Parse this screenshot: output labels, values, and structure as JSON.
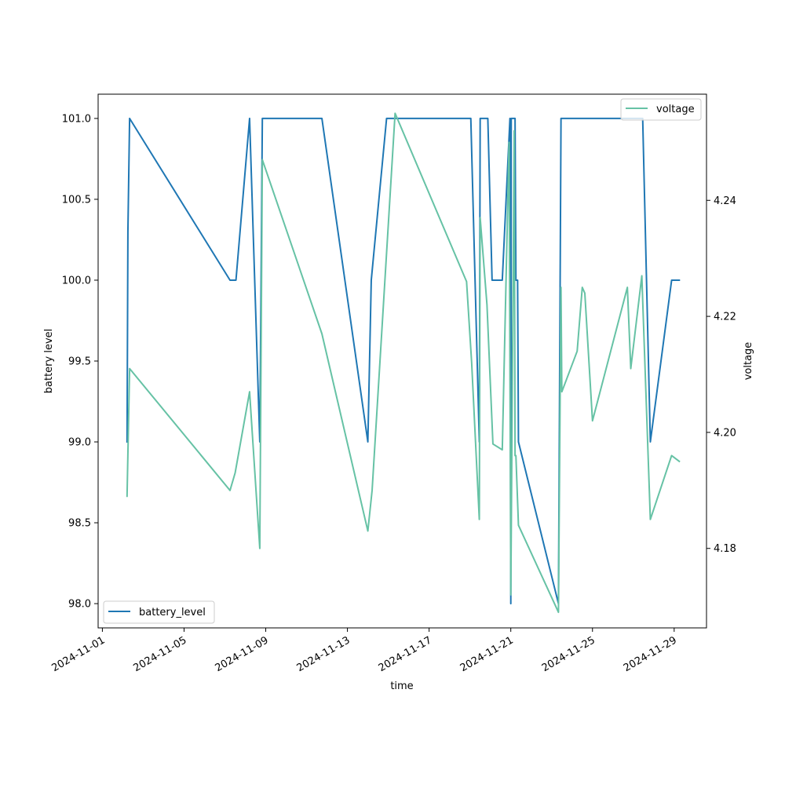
{
  "chart_data": {
    "type": "line",
    "title": "",
    "xlabel": "time",
    "ylabel_left": "battery level",
    "ylabel_right": "voltage",
    "xlim": [
      "2024-10-31T19:00",
      "2024-11-30T14:00"
    ],
    "ylim_left": [
      97.85,
      101.15
    ],
    "ylim_right": [
      4.1663,
      4.2583
    ],
    "x_ticks": [
      "2024-11-01",
      "2024-11-05",
      "2024-11-09",
      "2024-11-13",
      "2024-11-17",
      "2024-11-21",
      "2024-11-25",
      "2024-11-29"
    ],
    "y_ticks_left": [
      "98.0",
      "98.5",
      "99.0",
      "99.5",
      "100.0",
      "100.5",
      "101.0"
    ],
    "y_ticks_right": [
      "4.18",
      "4.20",
      "4.22",
      "4.24"
    ],
    "grid": false,
    "series": [
      {
        "name": "battery_level",
        "axis": "left",
        "color": "#1f77b4",
        "legend_position": "lower-left",
        "points": [
          [
            "2024-11-02T05:00",
            99
          ],
          [
            "2024-11-02T06:00",
            100.3
          ],
          [
            "2024-11-02T08:00",
            101
          ],
          [
            "2024-11-07T06:00",
            100
          ],
          [
            "2024-11-07T13:00",
            100
          ],
          [
            "2024-11-08T05:00",
            101
          ],
          [
            "2024-11-08T17:00",
            99
          ],
          [
            "2024-11-08T20:00",
            101
          ],
          [
            "2024-11-11T18:00",
            101
          ],
          [
            "2024-11-14T00:00",
            99
          ],
          [
            "2024-11-14T04:00",
            100
          ],
          [
            "2024-11-14T22:00",
            101
          ],
          [
            "2024-11-19T01:00",
            101
          ],
          [
            "2024-11-19T11:00",
            99
          ],
          [
            "2024-11-19T12:00",
            101
          ],
          [
            "2024-11-19T21:00",
            101
          ],
          [
            "2024-11-20T02:00",
            100
          ],
          [
            "2024-11-20T14:00",
            100
          ],
          [
            "2024-11-20T23:00",
            101
          ],
          [
            "2024-11-21T00:00",
            98
          ],
          [
            "2024-11-21T00:30",
            101
          ],
          [
            "2024-11-21T05:00",
            101
          ],
          [
            "2024-11-21T06:00",
            100
          ],
          [
            "2024-11-21T08:00",
            100
          ],
          [
            "2024-11-21T09:00",
            99
          ],
          [
            "2024-11-23T08:00",
            98
          ],
          [
            "2024-11-23T11:00",
            101
          ],
          [
            "2024-11-27T11:00",
            101
          ],
          [
            "2024-11-27T20:00",
            99
          ],
          [
            "2024-11-28T21:00",
            100
          ],
          [
            "2024-11-29T06:00",
            100
          ]
        ]
      },
      {
        "name": "voltage",
        "axis": "right",
        "color": "#66c2a5",
        "legend_position": "upper-right",
        "points": [
          [
            "2024-11-02T05:00",
            4.189
          ],
          [
            "2024-11-02T08:00",
            4.211
          ],
          [
            "2024-11-07T06:00",
            4.19
          ],
          [
            "2024-11-07T12:00",
            4.193
          ],
          [
            "2024-11-08T05:00",
            4.207
          ],
          [
            "2024-11-08T17:00",
            4.18
          ],
          [
            "2024-11-08T20:00",
            4.247
          ],
          [
            "2024-11-11T18:00",
            4.217
          ],
          [
            "2024-11-14T00:00",
            4.183
          ],
          [
            "2024-11-14T05:00",
            4.19
          ],
          [
            "2024-11-15T08:00",
            4.255
          ],
          [
            "2024-11-18T20:00",
            4.226
          ],
          [
            "2024-11-19T02:00",
            4.212
          ],
          [
            "2024-11-19T11:00",
            4.185
          ],
          [
            "2024-11-19T12:00",
            4.237
          ],
          [
            "2024-11-19T20:00",
            4.222
          ],
          [
            "2024-11-20T03:00",
            4.198
          ],
          [
            "2024-11-20T14:00",
            4.197
          ],
          [
            "2024-11-20T22:00",
            4.25
          ],
          [
            "2024-11-21T00:00",
            4.172
          ],
          [
            "2024-11-21T04:00",
            4.252
          ],
          [
            "2024-11-21T05:00",
            4.196
          ],
          [
            "2024-11-21T06:00",
            4.196
          ],
          [
            "2024-11-21T09:00",
            4.184
          ],
          [
            "2024-11-23T08:00",
            4.169
          ],
          [
            "2024-11-23T11:00",
            4.225
          ],
          [
            "2024-11-23T12:00",
            4.207
          ],
          [
            "2024-11-24T06:00",
            4.214
          ],
          [
            "2024-11-24T12:00",
            4.225
          ],
          [
            "2024-11-24T15:00",
            4.224
          ],
          [
            "2024-11-25T00:00",
            4.202
          ],
          [
            "2024-11-26T17:00",
            4.225
          ],
          [
            "2024-11-26T21:00",
            4.211
          ],
          [
            "2024-11-27T10:00",
            4.227
          ],
          [
            "2024-11-27T20:00",
            4.185
          ],
          [
            "2024-11-28T21:00",
            4.196
          ],
          [
            "2024-11-29T06:00",
            4.195
          ]
        ]
      }
    ]
  }
}
